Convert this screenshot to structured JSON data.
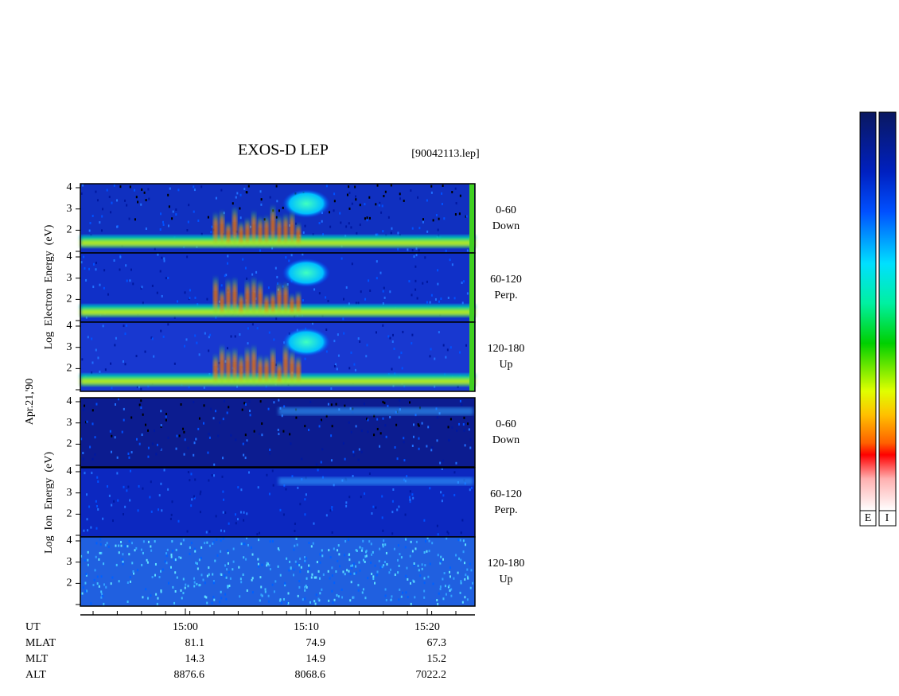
{
  "header": {
    "title": "EXOS-D LEP",
    "file": "[90042113.lep]"
  },
  "date": "Apr.21,'90",
  "electron": {
    "axis_label": "Log  Electron  Energy  (eV)",
    "panels": [
      {
        "range": "0-60",
        "direction": "Down"
      },
      {
        "range": "60-120",
        "direction": "Perp."
      },
      {
        "range": "120-180",
        "direction": "Up"
      }
    ]
  },
  "ion": {
    "axis_label": "Log  Ion  Energy  (eV)",
    "panels": [
      {
        "range": "0-60",
        "direction": "Down"
      },
      {
        "range": "60-120",
        "direction": "Perp."
      },
      {
        "range": "120-180",
        "direction": "Up"
      }
    ]
  },
  "yticks": [
    4,
    3,
    2
  ],
  "time_axis": {
    "label": "UT",
    "ticks": [
      "15:00",
      "15:10",
      "15:20"
    ]
  },
  "orbit": [
    {
      "label": "MLAT",
      "values": [
        81.1,
        74.9,
        67.3
      ]
    },
    {
      "label": "MLT",
      "values": [
        14.3,
        14.9,
        15.2
      ]
    },
    {
      "label": "ALT",
      "values": [
        8876.6,
        8068.6,
        7022.2
      ]
    }
  ],
  "colorbars": [
    "E",
    "I"
  ]
}
